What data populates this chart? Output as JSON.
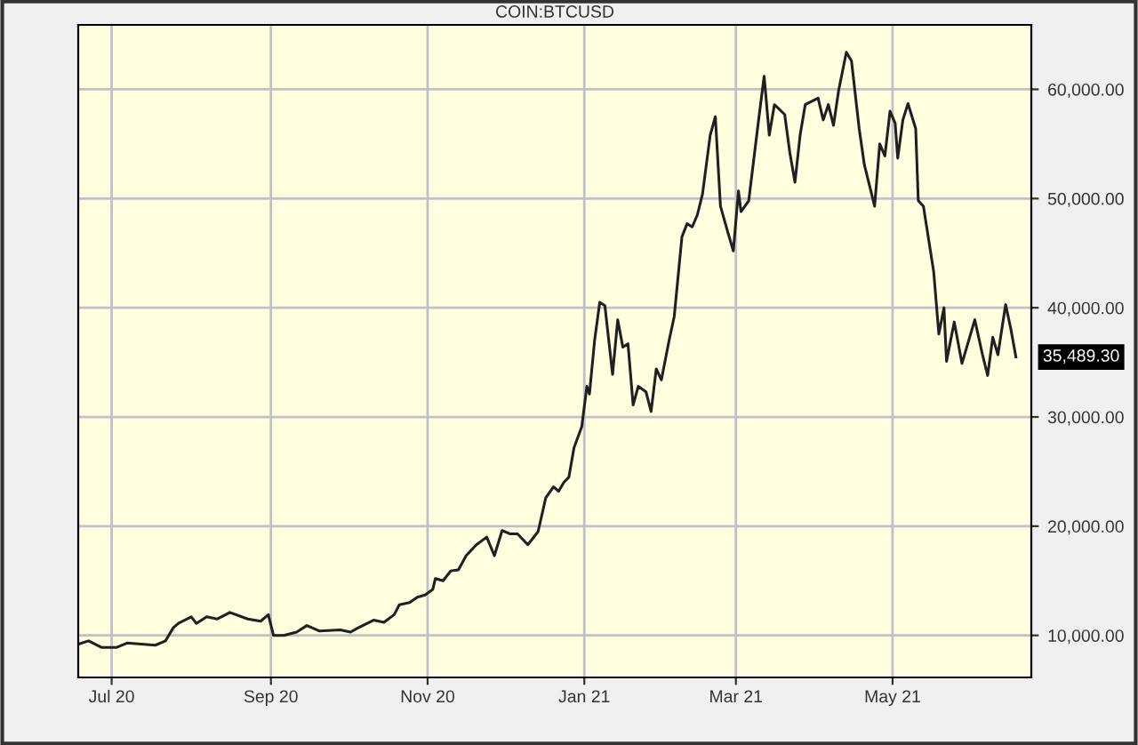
{
  "chart_data": {
    "type": "line",
    "title": "COIN:BTCUSD",
    "x": [
      "2020-06-18",
      "2020-06-22",
      "2020-06-27",
      "2020-07-03",
      "2020-07-07",
      "2020-07-18",
      "2020-07-22",
      "2020-07-25",
      "2020-07-27",
      "2020-08-01",
      "2020-08-03",
      "2020-08-07",
      "2020-08-11",
      "2020-08-16",
      "2020-08-23",
      "2020-08-28",
      "2020-08-31",
      "2020-09-02",
      "2020-09-06",
      "2020-09-11",
      "2020-09-15",
      "2020-09-20",
      "2020-09-28",
      "2020-10-02",
      "2020-10-05",
      "2020-10-11",
      "2020-10-15",
      "2020-10-19",
      "2020-10-21",
      "2020-10-25",
      "2020-10-28",
      "2020-10-31",
      "2020-11-03",
      "2020-11-04",
      "2020-11-07",
      "2020-11-10",
      "2020-11-13",
      "2020-11-16",
      "2020-11-20",
      "2020-11-24",
      "2020-11-27",
      "2020-11-30",
      "2020-12-03",
      "2020-12-06",
      "2020-12-10",
      "2020-12-14",
      "2020-12-17",
      "2020-12-20",
      "2020-12-22",
      "2020-12-24",
      "2020-12-26",
      "2020-12-28",
      "2020-12-31",
      "2021-01-02",
      "2021-01-03",
      "2021-01-05",
      "2021-01-07",
      "2021-01-09",
      "2021-01-12",
      "2021-01-14",
      "2021-01-16",
      "2021-01-18",
      "2021-01-20",
      "2021-01-22",
      "2021-01-25",
      "2021-01-27",
      "2021-01-29",
      "2021-01-31",
      "2021-02-03",
      "2021-02-05",
      "2021-02-08",
      "2021-02-10",
      "2021-02-12",
      "2021-02-14",
      "2021-02-16",
      "2021-02-19",
      "2021-02-21",
      "2021-02-23",
      "2021-02-26",
      "2021-02-28",
      "2021-03-02",
      "2021-03-03",
      "2021-03-06",
      "2021-03-10",
      "2021-03-12",
      "2021-03-14",
      "2021-03-16",
      "2021-03-20",
      "2021-03-22",
      "2021-03-24",
      "2021-03-26",
      "2021-03-28",
      "2021-04-02",
      "2021-04-04",
      "2021-04-06",
      "2021-04-08",
      "2021-04-10",
      "2021-04-13",
      "2021-04-15",
      "2021-04-18",
      "2021-04-20",
      "2021-04-24",
      "2021-04-26",
      "2021-04-28",
      "2021-04-30",
      "2021-05-02",
      "2021-05-03",
      "2021-05-05",
      "2021-05-07",
      "2021-05-10",
      "2021-05-11",
      "2021-05-13",
      "2021-05-17",
      "2021-05-19",
      "2021-05-21",
      "2021-05-22",
      "2021-05-25",
      "2021-05-28",
      "2021-05-31",
      "2021-06-02",
      "2021-06-05",
      "2021-06-07",
      "2021-06-09",
      "2021-06-11",
      "2021-06-14",
      "2021-06-16",
      "2021-06-18"
    ],
    "series": [
      {
        "color": "#202020",
        "values": [
          9200,
          9500,
          8900,
          8900,
          9300,
          9100,
          9500,
          10700,
          11100,
          11700,
          11100,
          11700,
          11500,
          12100,
          11500,
          11300,
          11900,
          10000,
          10000,
          10300,
          10900,
          10400,
          10500,
          10300,
          10700,
          11400,
          11200,
          11900,
          12800,
          13000,
          13500,
          13700,
          14200,
          15200,
          15000,
          15900,
          16000,
          17300,
          18300,
          19000,
          17300,
          19600,
          19300,
          19300,
          18300,
          19500,
          22600,
          23600,
          23200,
          24000,
          24500,
          27200,
          29100,
          32800,
          32100,
          37000,
          40500,
          40200,
          33900,
          38900,
          36400,
          36700,
          31100,
          32800,
          32300,
          30500,
          34400,
          33400,
          37000,
          39200,
          46500,
          47700,
          47400,
          48500,
          50400,
          55800,
          57500,
          49300,
          46800,
          45200,
          50700,
          48800,
          49800,
          57500,
          61200,
          55800,
          58600,
          57700,
          54200,
          51500,
          55800,
          58600,
          59200,
          57200,
          58600,
          56700,
          59900,
          63400,
          62600,
          56400,
          53100,
          49300,
          55000,
          53900,
          58000,
          56900,
          53700,
          57200,
          58700,
          56400,
          49800,
          49300,
          43300,
          37600,
          40000,
          35100,
          38700,
          34900,
          37300,
          38900,
          35700,
          33800,
          37300,
          35700,
          40300,
          38100,
          35489.3
        ]
      }
    ],
    "xlim": [
      "2020-06-18",
      "2021-06-24"
    ],
    "xticks": [
      {
        "value": "2020-07-01",
        "label": "Jul 20"
      },
      {
        "value": "2020-09-01",
        "label": "Sep 20"
      },
      {
        "value": "2020-11-01",
        "label": "Nov 20"
      },
      {
        "value": "2021-01-01",
        "label": "Jan 21"
      },
      {
        "value": "2021-03-01",
        "label": "Mar 21"
      },
      {
        "value": "2021-05-01",
        "label": "May 21"
      }
    ],
    "ylim": [
      6150,
      65900
    ],
    "yticks": [
      {
        "value": 10000,
        "label": "10,000.00"
      },
      {
        "value": 20000,
        "label": "20,000.00"
      },
      {
        "value": 30000,
        "label": "30,000.00"
      },
      {
        "value": 40000,
        "label": "40,000.00"
      },
      {
        "value": 50000,
        "label": "50,000.00"
      },
      {
        "value": 60000,
        "label": "60,000.00"
      }
    ],
    "grid": true,
    "annotations": [
      {
        "text": "35,489.30",
        "x": "2021-06-18",
        "y": 35489.3
      }
    ]
  }
}
